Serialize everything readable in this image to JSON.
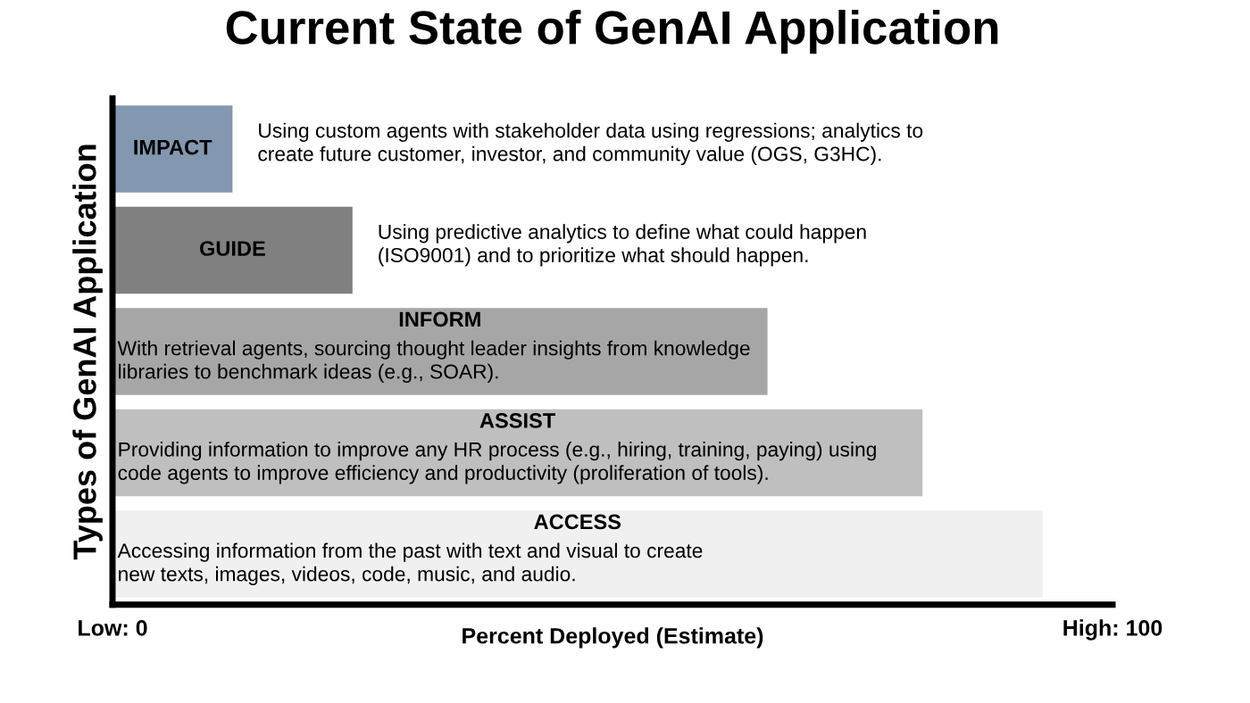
{
  "chart_data": {
    "type": "bar",
    "orientation": "horizontal",
    "title": "Current State of GenAI Application",
    "xlabel": "Percent Deployed (Estimate)",
    "ylabel": "Types of GenAI Application",
    "categories": [
      "IMPACT",
      "GUIDE",
      "INFORM",
      "ASSIST",
      "ACCESS"
    ],
    "values": [
      12,
      24,
      65.5,
      81,
      93
    ],
    "colors": [
      "#8497b0",
      "#808080",
      "#a6a6a6",
      "#bfbfbf",
      "#f0f0f0"
    ],
    "xlim": [
      0,
      100
    ],
    "xticks": [
      {
        "value": 0,
        "label": "Low: 0"
      },
      {
        "value": 100,
        "label": "High: 100"
      }
    ],
    "tick_labels": "x",
    "grid": false,
    "legend": false,
    "annotations": [
      "Using custom agents with stakeholder data using regressions; analytics to\ncreate future customer, investor, and community value (OGS, G3HC).",
      "Using predictive analytics to define what could happen\n(ISO9001) and to prioritize what should happen.",
      "With retrieval agents, sourcing thought leader insights from knowledge\nlibraries to benchmark ideas (e.g., SOAR).",
      "Providing information to improve any HR process (e.g., hiring, training, paying) using\ncode agents to improve efficiency and productivity (proliferation of tools).",
      "Accessing information from the past with text and visual to create\nnew texts, images, videos, code, music, and audio."
    ]
  }
}
